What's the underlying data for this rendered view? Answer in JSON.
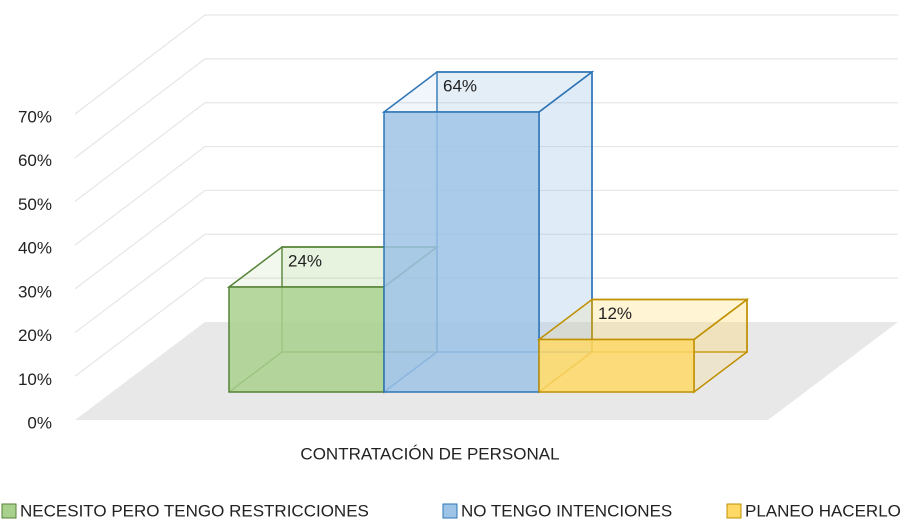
{
  "chart_data": {
    "type": "bar3d",
    "categories": [
      "CONTRATACIÓN DE PERSONAL"
    ],
    "series": [
      {
        "name": "NECESITO PERO TENGO RESTRICCIONES",
        "color": "#a9d18e",
        "stroke": "#548235",
        "values": [
          24
        ],
        "value_labels": [
          "24%"
        ]
      },
      {
        "name": "NO TENGO INTENCIONES",
        "color": "#9dc3e6",
        "stroke": "#2e75b6",
        "values": [
          64
        ],
        "value_labels": [
          "64%"
        ]
      },
      {
        "name": "PLANEO HACERLO",
        "color": "#ffd966",
        "stroke": "#bf9000",
        "values": [
          12
        ],
        "value_labels": [
          "12%"
        ]
      }
    ],
    "ylim": [
      0,
      70
    ],
    "yticks": [
      {
        "value": 0,
        "label": "0%"
      },
      {
        "value": 10,
        "label": "10%"
      },
      {
        "value": 20,
        "label": "20%"
      },
      {
        "value": 30,
        "label": "30%"
      },
      {
        "value": 40,
        "label": "40%"
      },
      {
        "value": 50,
        "label": "50%"
      },
      {
        "value": 60,
        "label": "60%"
      },
      {
        "value": 70,
        "label": "70%"
      }
    ],
    "grid": true,
    "legend": "bottom"
  }
}
